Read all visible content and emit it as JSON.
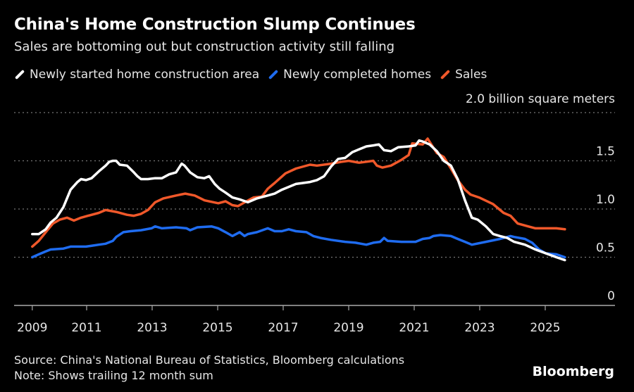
{
  "header": {
    "title": "China's Home Construction Slump Continues",
    "subtitle": "Sales are bottoming out but construction activity still falling"
  },
  "footer": {
    "source": "Source: China's National Bureau of Statistics, Bloomberg calculations",
    "note": "Note: Shows trailing 12 month sum",
    "brand": "Bloomberg"
  },
  "chart_data": {
    "type": "line",
    "title": "China's Home Construction Slump Continues",
    "ylabel": "2.0 billion square meters",
    "ylim": [
      0,
      2.0
    ],
    "yticks": [
      {
        "v": 0,
        "label": "0"
      },
      {
        "v": 0.5,
        "label": "0.5"
      },
      {
        "v": 1.0,
        "label": "1.0"
      },
      {
        "v": 1.5,
        "label": "1.5"
      },
      {
        "v": 2.0,
        "label": "2.0 billion square meters"
      }
    ],
    "xlim": [
      2009.34,
      2027.2
    ],
    "xticks": [
      {
        "v": 2009.34,
        "label": "2009"
      },
      {
        "v": 2011,
        "label": "2011"
      },
      {
        "v": 2013,
        "label": "2013"
      },
      {
        "v": 2015,
        "label": "2015"
      },
      {
        "v": 2017,
        "label": "2017"
      },
      {
        "v": 2019,
        "label": "2019"
      },
      {
        "v": 2021,
        "label": "2021"
      },
      {
        "v": 2023,
        "label": "2023"
      },
      {
        "v": 2025,
        "label": "2025"
      }
    ],
    "grid": true,
    "legend_placement": "top-left",
    "series": [
      {
        "name": "Newly started home construction area",
        "color": "#ffffff",
        "points": [
          [
            2009.34,
            0.74
          ],
          [
            2009.54,
            0.74
          ],
          [
            2009.75,
            0.79
          ],
          [
            2009.9,
            0.86
          ],
          [
            2010.08,
            0.91
          ],
          [
            2010.29,
            1.02
          ],
          [
            2010.51,
            1.2
          ],
          [
            2010.72,
            1.28
          ],
          [
            2010.83,
            1.31
          ],
          [
            2010.98,
            1.3
          ],
          [
            2011.15,
            1.32
          ],
          [
            2011.37,
            1.39
          ],
          [
            2011.58,
            1.45
          ],
          [
            2011.69,
            1.49
          ],
          [
            2011.8,
            1.5
          ],
          [
            2011.9,
            1.5
          ],
          [
            2012.01,
            1.46
          ],
          [
            2012.23,
            1.45
          ],
          [
            2012.44,
            1.38
          ],
          [
            2012.55,
            1.34
          ],
          [
            2012.66,
            1.31
          ],
          [
            2012.87,
            1.31
          ],
          [
            2013.09,
            1.32
          ],
          [
            2013.3,
            1.32
          ],
          [
            2013.52,
            1.36
          ],
          [
            2013.73,
            1.38
          ],
          [
            2013.9,
            1.47
          ],
          [
            2013.99,
            1.45
          ],
          [
            2014.16,
            1.38
          ],
          [
            2014.38,
            1.33
          ],
          [
            2014.59,
            1.32
          ],
          [
            2014.74,
            1.34
          ],
          [
            2014.91,
            1.26
          ],
          [
            2015.06,
            1.21
          ],
          [
            2015.24,
            1.17
          ],
          [
            2015.45,
            1.12
          ],
          [
            2015.67,
            1.1
          ],
          [
            2015.92,
            1.07
          ],
          [
            2016.2,
            1.11
          ],
          [
            2016.53,
            1.14
          ],
          [
            2016.74,
            1.16
          ],
          [
            2016.96,
            1.2
          ],
          [
            2017.39,
            1.26
          ],
          [
            2017.82,
            1.28
          ],
          [
            2018.03,
            1.3
          ],
          [
            2018.25,
            1.34
          ],
          [
            2018.46,
            1.44
          ],
          [
            2018.68,
            1.52
          ],
          [
            2018.89,
            1.53
          ],
          [
            2019.11,
            1.59
          ],
          [
            2019.32,
            1.62
          ],
          [
            2019.54,
            1.65
          ],
          [
            2019.75,
            1.66
          ],
          [
            2019.92,
            1.67
          ],
          [
            2020.08,
            1.61
          ],
          [
            2020.29,
            1.6
          ],
          [
            2020.51,
            1.64
          ],
          [
            2020.83,
            1.65
          ],
          [
            2021.04,
            1.66
          ],
          [
            2021.15,
            1.71
          ],
          [
            2021.26,
            1.7
          ],
          [
            2021.47,
            1.67
          ],
          [
            2021.69,
            1.6
          ],
          [
            2021.9,
            1.5
          ],
          [
            2022.12,
            1.45
          ],
          [
            2022.33,
            1.31
          ],
          [
            2022.55,
            1.09
          ],
          [
            2022.76,
            0.91
          ],
          [
            2022.94,
            0.89
          ],
          [
            2023.19,
            0.82
          ],
          [
            2023.41,
            0.74
          ],
          [
            2023.62,
            0.72
          ],
          [
            2023.84,
            0.7
          ],
          [
            2024.05,
            0.66
          ],
          [
            2024.38,
            0.63
          ],
          [
            2024.7,
            0.58
          ],
          [
            2025.02,
            0.54
          ],
          [
            2025.34,
            0.5
          ],
          [
            2025.6,
            0.47
          ]
        ]
      },
      {
        "name": "Newly completed homes",
        "color": "#1f6cf0",
        "points": [
          [
            2009.34,
            0.5
          ],
          [
            2009.54,
            0.53
          ],
          [
            2009.75,
            0.56
          ],
          [
            2009.9,
            0.58
          ],
          [
            2010.29,
            0.59
          ],
          [
            2010.51,
            0.61
          ],
          [
            2010.98,
            0.61
          ],
          [
            2011.37,
            0.63
          ],
          [
            2011.58,
            0.64
          ],
          [
            2011.8,
            0.67
          ],
          [
            2011.9,
            0.71
          ],
          [
            2012.12,
            0.76
          ],
          [
            2012.34,
            0.77
          ],
          [
            2012.66,
            0.78
          ],
          [
            2012.98,
            0.8
          ],
          [
            2013.09,
            0.82
          ],
          [
            2013.3,
            0.8
          ],
          [
            2013.73,
            0.81
          ],
          [
            2014.05,
            0.8
          ],
          [
            2014.16,
            0.78
          ],
          [
            2014.38,
            0.81
          ],
          [
            2014.81,
            0.82
          ],
          [
            2015.02,
            0.8
          ],
          [
            2015.24,
            0.76
          ],
          [
            2015.45,
            0.72
          ],
          [
            2015.67,
            0.76
          ],
          [
            2015.82,
            0.72
          ],
          [
            2015.92,
            0.74
          ],
          [
            2016.2,
            0.76
          ],
          [
            2016.53,
            0.8
          ],
          [
            2016.74,
            0.77
          ],
          [
            2016.96,
            0.77
          ],
          [
            2017.17,
            0.79
          ],
          [
            2017.39,
            0.77
          ],
          [
            2017.71,
            0.76
          ],
          [
            2017.92,
            0.72
          ],
          [
            2018.14,
            0.7
          ],
          [
            2018.46,
            0.68
          ],
          [
            2018.89,
            0.66
          ],
          [
            2019.21,
            0.65
          ],
          [
            2019.54,
            0.63
          ],
          [
            2019.75,
            0.65
          ],
          [
            2019.96,
            0.66
          ],
          [
            2020.08,
            0.7
          ],
          [
            2020.19,
            0.67
          ],
          [
            2020.61,
            0.66
          ],
          [
            2021.04,
            0.66
          ],
          [
            2021.26,
            0.69
          ],
          [
            2021.47,
            0.7
          ],
          [
            2021.58,
            0.72
          ],
          [
            2021.8,
            0.73
          ],
          [
            2022.12,
            0.72
          ],
          [
            2022.33,
            0.69
          ],
          [
            2022.55,
            0.66
          ],
          [
            2022.76,
            0.63
          ],
          [
            2023.19,
            0.66
          ],
          [
            2023.62,
            0.69
          ],
          [
            2023.94,
            0.72
          ],
          [
            2024.05,
            0.71
          ],
          [
            2024.38,
            0.69
          ],
          [
            2024.6,
            0.65
          ],
          [
            2024.81,
            0.58
          ],
          [
            2025.02,
            0.54
          ],
          [
            2025.34,
            0.53
          ],
          [
            2025.6,
            0.5
          ]
        ]
      },
      {
        "name": "Sales",
        "color": "#f0582a",
        "points": [
          [
            2009.34,
            0.61
          ],
          [
            2009.54,
            0.67
          ],
          [
            2009.8,
            0.78
          ],
          [
            2009.97,
            0.85
          ],
          [
            2010.18,
            0.89
          ],
          [
            2010.4,
            0.91
          ],
          [
            2010.61,
            0.88
          ],
          [
            2010.83,
            0.91
          ],
          [
            2011.04,
            0.93
          ],
          [
            2011.37,
            0.96
          ],
          [
            2011.58,
            0.99
          ],
          [
            2011.9,
            0.97
          ],
          [
            2012.23,
            0.94
          ],
          [
            2012.44,
            0.93
          ],
          [
            2012.66,
            0.95
          ],
          [
            2012.87,
            0.99
          ],
          [
            2013.09,
            1.07
          ],
          [
            2013.34,
            1.11
          ],
          [
            2013.73,
            1.14
          ],
          [
            2014.01,
            1.16
          ],
          [
            2014.3,
            1.14
          ],
          [
            2014.6,
            1.09
          ],
          [
            2015.02,
            1.06
          ],
          [
            2015.24,
            1.08
          ],
          [
            2015.45,
            1.04
          ],
          [
            2015.62,
            1.03
          ],
          [
            2015.88,
            1.08
          ],
          [
            2016.1,
            1.12
          ],
          [
            2016.35,
            1.13
          ],
          [
            2016.53,
            1.21
          ],
          [
            2016.74,
            1.27
          ],
          [
            2017.07,
            1.37
          ],
          [
            2017.39,
            1.42
          ],
          [
            2017.82,
            1.46
          ],
          [
            2018.03,
            1.45
          ],
          [
            2018.46,
            1.47
          ],
          [
            2018.78,
            1.49
          ],
          [
            2019.0,
            1.5
          ],
          [
            2019.32,
            1.48
          ],
          [
            2019.75,
            1.5
          ],
          [
            2019.86,
            1.45
          ],
          [
            2020.03,
            1.43
          ],
          [
            2020.29,
            1.45
          ],
          [
            2020.61,
            1.51
          ],
          [
            2020.83,
            1.56
          ],
          [
            2020.94,
            1.68
          ],
          [
            2021.26,
            1.67
          ],
          [
            2021.41,
            1.73
          ],
          [
            2021.69,
            1.58
          ],
          [
            2021.9,
            1.54
          ],
          [
            2022.12,
            1.42
          ],
          [
            2022.33,
            1.3
          ],
          [
            2022.55,
            1.2
          ],
          [
            2022.72,
            1.15
          ],
          [
            2022.98,
            1.12
          ],
          [
            2023.41,
            1.05
          ],
          [
            2023.73,
            0.96
          ],
          [
            2023.94,
            0.93
          ],
          [
            2024.16,
            0.85
          ],
          [
            2024.48,
            0.82
          ],
          [
            2024.7,
            0.8
          ],
          [
            2025.02,
            0.8
          ],
          [
            2025.34,
            0.8
          ],
          [
            2025.6,
            0.79
          ]
        ]
      }
    ]
  }
}
